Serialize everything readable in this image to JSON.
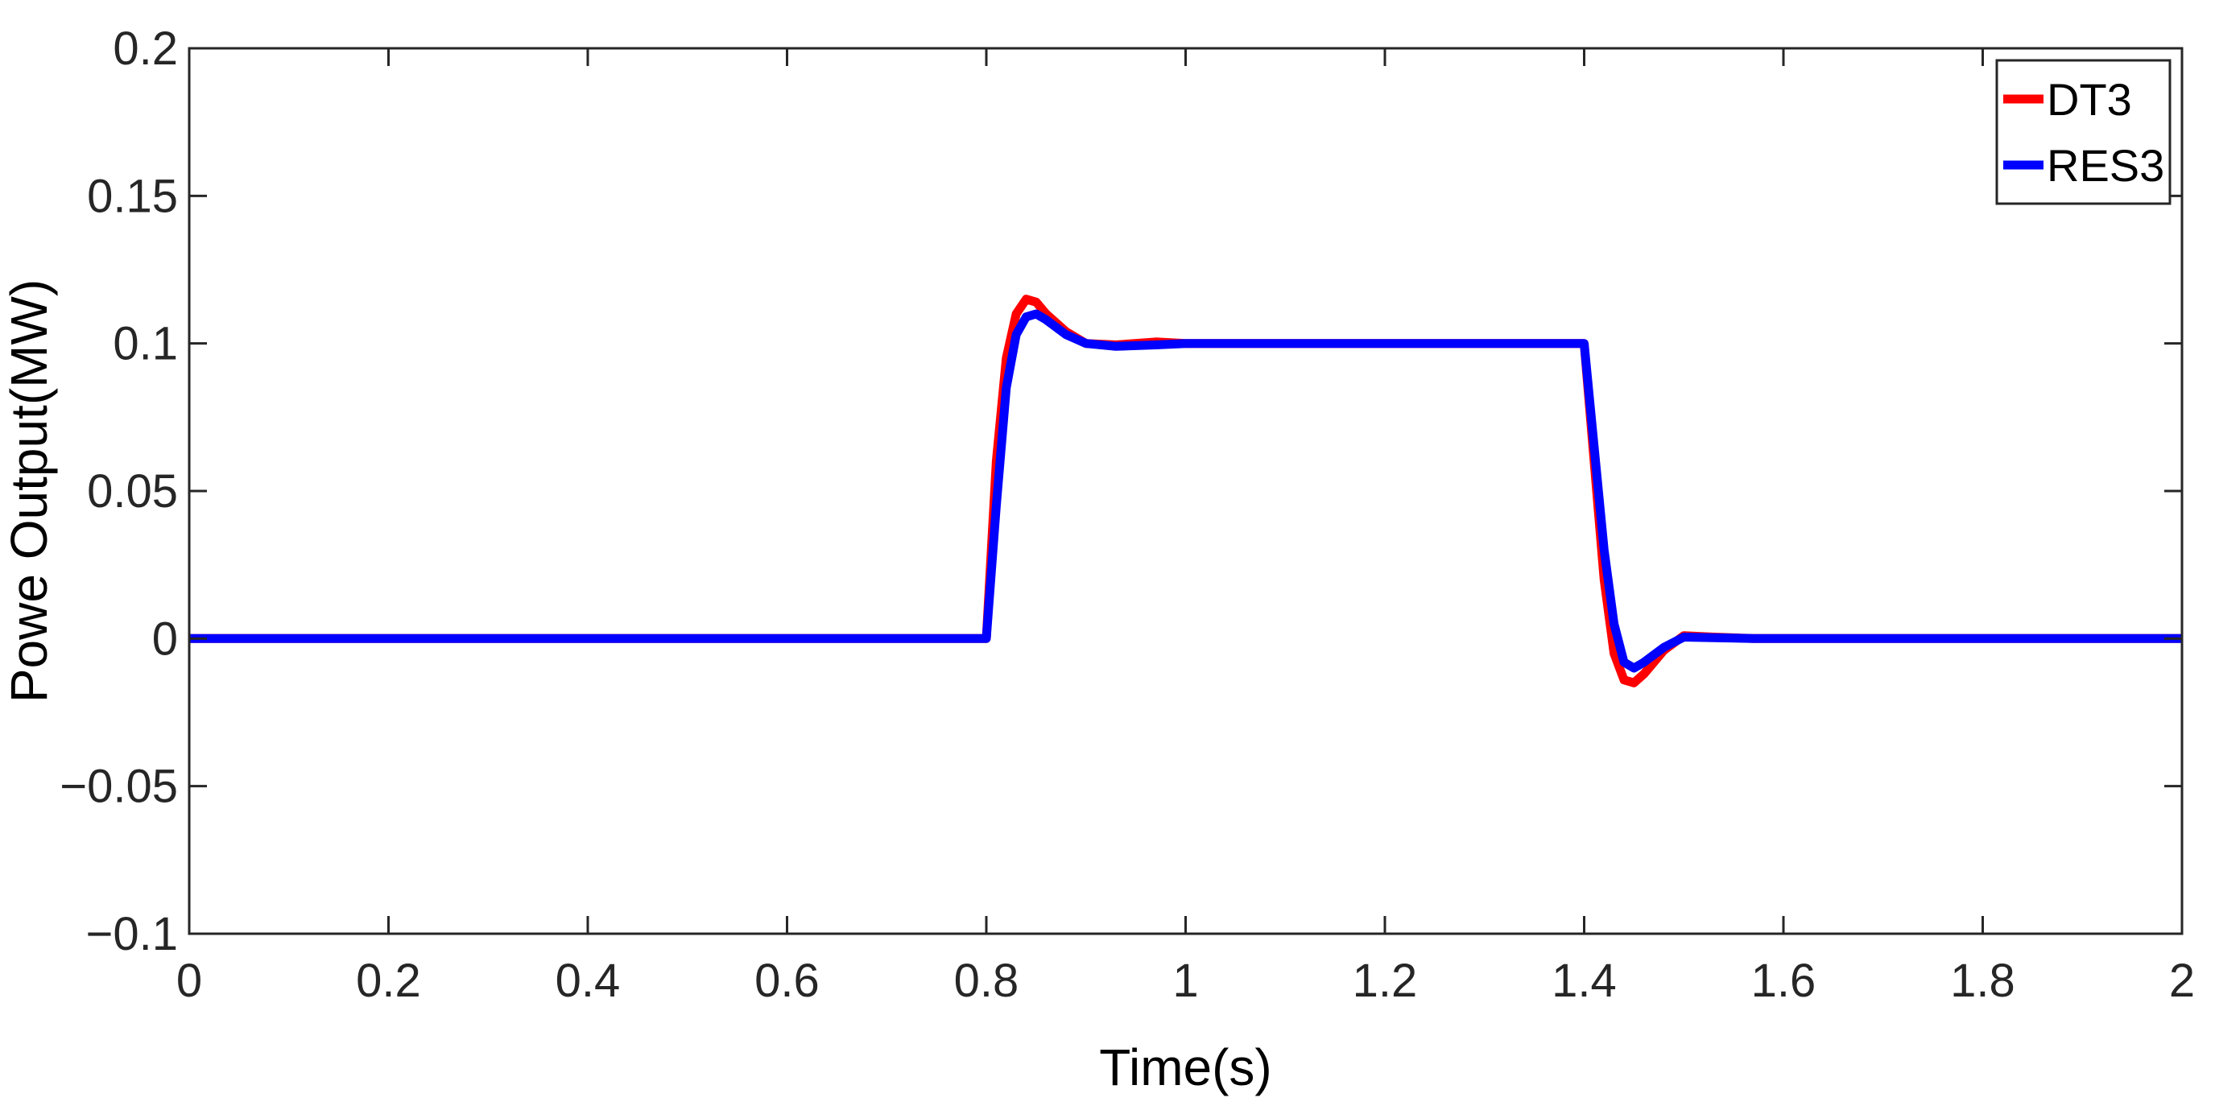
{
  "chart_data": {
    "type": "line",
    "xlabel": "Time(s)",
    "ylabel": "Powe Output(MW)",
    "xlim": [
      0,
      2
    ],
    "ylim": [
      -0.1,
      0.2
    ],
    "xticks": [
      0,
      0.2,
      0.4,
      0.6,
      0.8,
      1,
      1.2,
      1.4,
      1.6,
      1.8,
      2
    ],
    "xtick_labels": [
      "0",
      "0.2",
      "0.4",
      "0.6",
      "0.8",
      "1",
      "1.2",
      "1.4",
      "1.6",
      "1.8",
      "2"
    ],
    "yticks": [
      -0.1,
      -0.05,
      0,
      0.05,
      0.1,
      0.15,
      0.2
    ],
    "ytick_labels": [
      "−0.1",
      "−0.05",
      "0",
      "0.05",
      "0.1",
      "0.15",
      "0.2"
    ],
    "grid": false,
    "legend": "top-right",
    "series": [
      {
        "name": "DT3",
        "color": "#ff0000",
        "x": [
          0,
          0.8,
          0.81,
          0.82,
          0.83,
          0.84,
          0.85,
          0.86,
          0.88,
          0.9,
          0.93,
          0.97,
          1.0,
          1.2,
          1.4,
          1.41,
          1.42,
          1.43,
          1.44,
          1.45,
          1.46,
          1.48,
          1.5,
          1.53,
          1.57,
          1.6,
          1.8,
          2.0
        ],
        "y": [
          0,
          0,
          0.06,
          0.095,
          0.11,
          0.115,
          0.114,
          0.11,
          0.104,
          0.1,
          0.0995,
          0.1005,
          0.1,
          0.1,
          0.1,
          0.06,
          0.02,
          -0.005,
          -0.014,
          -0.015,
          -0.012,
          -0.004,
          0.001,
          0.0005,
          0,
          0,
          0,
          0
        ]
      },
      {
        "name": "RES3",
        "color": "#0000ff",
        "x": [
          0,
          0.8,
          0.81,
          0.82,
          0.83,
          0.84,
          0.85,
          0.86,
          0.88,
          0.9,
          0.93,
          0.97,
          1.0,
          1.2,
          1.4,
          1.41,
          1.42,
          1.43,
          1.44,
          1.45,
          1.46,
          1.48,
          1.5,
          1.53,
          1.57,
          1.6,
          1.8,
          2.0
        ],
        "y": [
          0,
          0,
          0.045,
          0.085,
          0.103,
          0.109,
          0.11,
          0.108,
          0.103,
          0.1,
          0.099,
          0.0995,
          0.1,
          0.1,
          0.1,
          0.065,
          0.03,
          0.005,
          -0.008,
          -0.01,
          -0.008,
          -0.003,
          0.0005,
          0.0003,
          0,
          0,
          0,
          0
        ]
      }
    ]
  }
}
